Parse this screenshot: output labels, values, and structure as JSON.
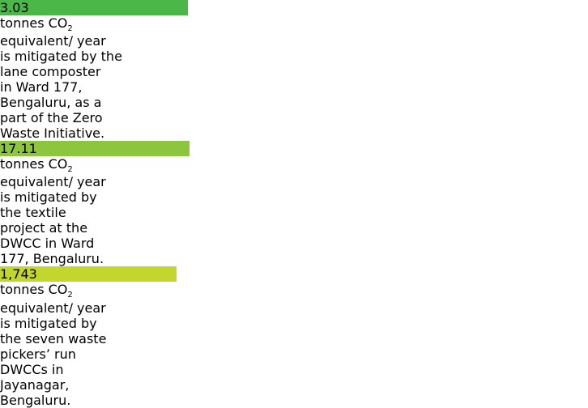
{
  "cards": [
    {
      "value": "3.03",
      "unit": "tonnes CO",
      "subscript": "2",
      "lines": [
        "equivalent/ year",
        "is mitigated by the",
        "lane composter",
        "in Ward 177,",
        "Bengaluru, as a",
        "part of the Zero",
        "Waste Initiative."
      ]
    },
    {
      "value": "17.11",
      "unit": "tonnes CO",
      "subscript": "2",
      "lines": [
        "equivalent/ year",
        "is mitigated by",
        "the textile",
        "project at the",
        "DWCC in Ward",
        "177, Bengaluru."
      ]
    },
    {
      "value": "1,743",
      "unit": "tonnes CO",
      "subscript": "2",
      "lines": [
        "equivalent/ year",
        "is mitigated by",
        "the seven waste",
        "pickers’ run",
        "DWCCs in",
        "Jayanagar,",
        "Bengaluru."
      ]
    }
  ]
}
